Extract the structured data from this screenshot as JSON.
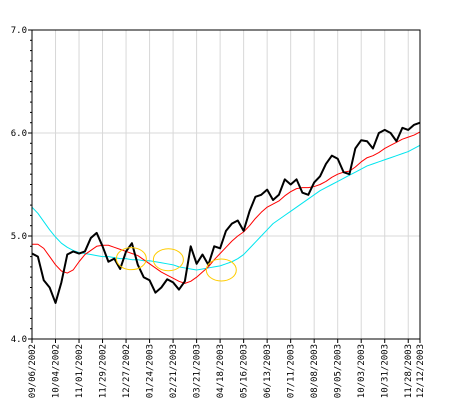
{
  "chart_data": {
    "type": "line",
    "title": "",
    "xlabel": "",
    "ylabel": "",
    "ylim": [
      4.0,
      7.0
    ],
    "y_ticks": [
      "4.0",
      "5.0",
      "6.0",
      "7.0"
    ],
    "y_tick_values": [
      4.0,
      5.0,
      6.0,
      7.0
    ],
    "x_tick_labels": [
      "09/06/2002",
      "10/04/2002",
      "11/01/2002",
      "11/29/2002",
      "12/27/2002",
      "01/24/2003",
      "02/21/2003",
      "03/21/2003",
      "04/18/2003",
      "05/16/2003",
      "06/13/2003",
      "07/11/2003",
      "08/08/2003",
      "09/05/2003",
      "10/03/2003",
      "10/31/2003",
      "11/28/2003",
      "12/12/2003"
    ],
    "x_tick_index": [
      0,
      4,
      8,
      12,
      16,
      20,
      24,
      28,
      32,
      36,
      40,
      44,
      48,
      52,
      56,
      60,
      64,
      66
    ],
    "grid": true,
    "colors": {
      "price": "#000000",
      "ma_short": "#ff0000",
      "ma_long": "#00e5ee",
      "highlight": "#ffcc00"
    },
    "series": [
      {
        "key": "price",
        "values": [
          4.83,
          4.8,
          4.57,
          4.5,
          4.35,
          4.55,
          4.82,
          4.85,
          4.83,
          4.85,
          4.98,
          5.03,
          4.9,
          4.75,
          4.78,
          4.68,
          4.85,
          4.93,
          4.72,
          4.6,
          4.57,
          4.45,
          4.5,
          4.58,
          4.55,
          4.48,
          4.56,
          4.9,
          4.73,
          4.82,
          4.72,
          4.9,
          4.88,
          5.05,
          5.12,
          5.15,
          5.05,
          5.24,
          5.38,
          5.4,
          5.45,
          5.35,
          5.4,
          5.55,
          5.5,
          5.55,
          5.42,
          5.4,
          5.52,
          5.58,
          5.7,
          5.78,
          5.75,
          5.62,
          5.6,
          5.85,
          5.93,
          5.92,
          5.85,
          6.0,
          6.03,
          6.0,
          5.92,
          6.05,
          6.03,
          6.08,
          6.1
        ]
      },
      {
        "key": "ma_short",
        "values": [
          4.92,
          4.92,
          4.88,
          4.8,
          4.72,
          4.66,
          4.64,
          4.67,
          4.75,
          4.82,
          4.86,
          4.9,
          4.91,
          4.91,
          4.89,
          4.87,
          4.85,
          4.83,
          4.81,
          4.77,
          4.73,
          4.69,
          4.65,
          4.62,
          4.59,
          4.56,
          4.54,
          4.56,
          4.6,
          4.65,
          4.7,
          4.77,
          4.83,
          4.89,
          4.95,
          5.0,
          5.04,
          5.1,
          5.17,
          5.23,
          5.28,
          5.31,
          5.34,
          5.39,
          5.43,
          5.46,
          5.47,
          5.47,
          5.48,
          5.5,
          5.53,
          5.57,
          5.6,
          5.62,
          5.63,
          5.67,
          5.72,
          5.76,
          5.78,
          5.81,
          5.85,
          5.88,
          5.91,
          5.94,
          5.96,
          5.98,
          6.01
        ]
      },
      {
        "key": "ma_long",
        "values": [
          5.28,
          5.22,
          5.14,
          5.06,
          4.99,
          4.93,
          4.89,
          4.86,
          4.84,
          4.83,
          4.82,
          4.81,
          4.8,
          4.8,
          4.79,
          4.78,
          4.78,
          4.77,
          4.77,
          4.76,
          4.76,
          4.75,
          4.74,
          4.73,
          4.72,
          4.7,
          4.69,
          4.68,
          4.67,
          4.68,
          4.69,
          4.7,
          4.71,
          4.73,
          4.75,
          4.78,
          4.82,
          4.88,
          4.94,
          5.0,
          5.06,
          5.12,
          5.16,
          5.2,
          5.24,
          5.28,
          5.32,
          5.36,
          5.4,
          5.44,
          5.47,
          5.5,
          5.53,
          5.56,
          5.59,
          5.62,
          5.65,
          5.68,
          5.7,
          5.72,
          5.74,
          5.76,
          5.78,
          5.8,
          5.82,
          5.85,
          5.88
        ]
      }
    ],
    "highlights": [
      {
        "index": 16.9,
        "value": 4.78
      },
      {
        "index": 23.2,
        "value": 4.77
      },
      {
        "index": 32.2,
        "value": 4.67
      }
    ]
  }
}
